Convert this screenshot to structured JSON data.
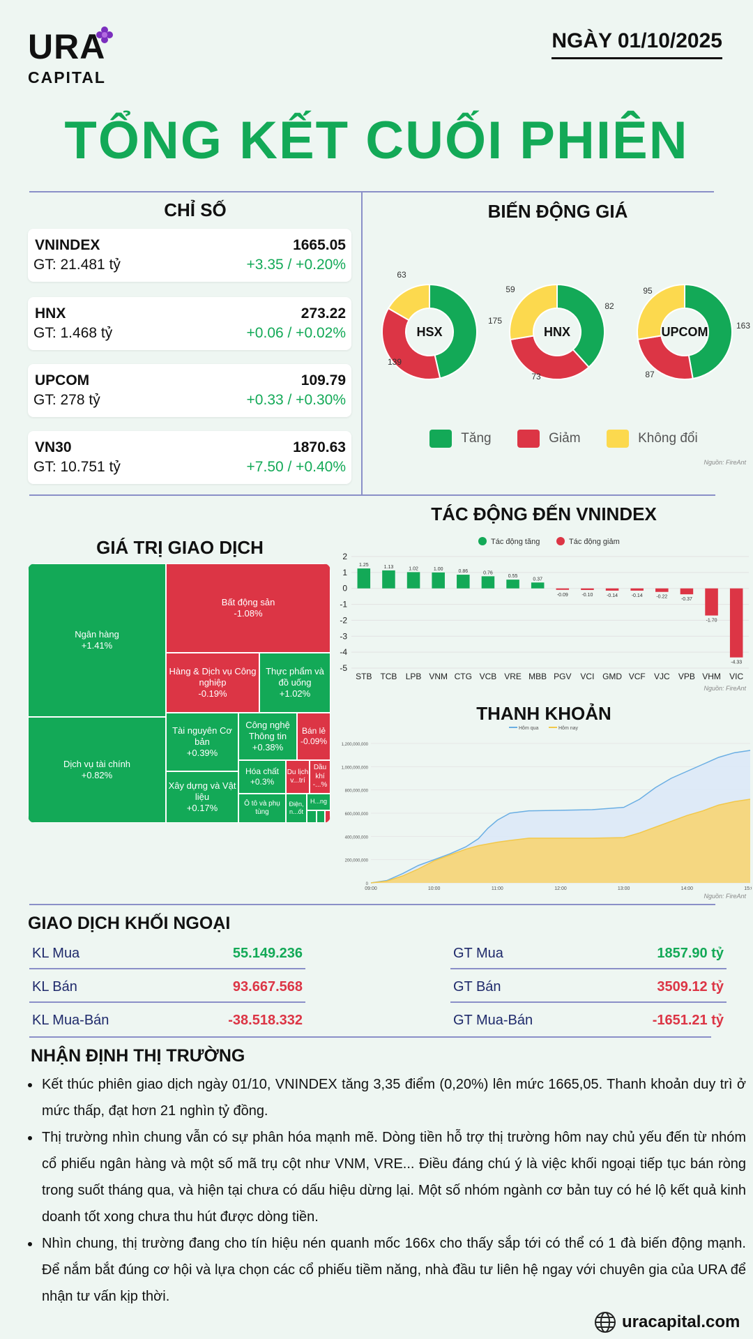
{
  "header": {
    "logo_text": "URA",
    "logo_sub": "CAPITAL",
    "date": "NGÀY 01/10/2025",
    "title": "TỔNG KẾT CUỐI PHIÊN"
  },
  "indices": {
    "heading": "CHỈ SỐ",
    "items": [
      {
        "name": "VNINDEX",
        "gt": "GT: 21.481 tỷ",
        "value": "1665.05",
        "change": "+3.35 / +0.20%"
      },
      {
        "name": "HNX",
        "gt": "GT: 1.468 tỷ",
        "value": "273.22",
        "change": "+0.06 / +0.02%"
      },
      {
        "name": "UPCOM",
        "gt": "GT: 278 tỷ",
        "value": "109.79",
        "change": "+0.33 / +0.30%"
      },
      {
        "name": "VN30",
        "gt": "GT: 10.751 tỷ",
        "value": "1870.63",
        "change": "+7.50 / +0.40%"
      }
    ]
  },
  "price_move": {
    "heading": "BIẾN ĐỘNG GIÁ",
    "donuts": [
      {
        "label": "HSX",
        "up": 175,
        "down": 139,
        "flat": 63
      },
      {
        "label": "HNX",
        "up": 82,
        "down": 73,
        "flat": 59
      },
      {
        "label": "UPCOM",
        "up": 163,
        "down": 87,
        "flat": 95
      }
    ],
    "legend": {
      "up": "Tăng",
      "down": "Giảm",
      "flat": "Không đổi"
    },
    "source": "Nguồn: FireAnt"
  },
  "colors": {
    "up": "#13a957",
    "down": "#dc3545",
    "flat": "#fcd94e",
    "accent": "#13a957",
    "line": "#8a8fc8"
  },
  "trade_value": {
    "heading": "GIÁ TRỊ GIAO DỊCH",
    "tiles": [
      {
        "name": "Ngân hàng",
        "pct": "+1.41%"
      },
      {
        "name": "Dịch vụ tài chính",
        "pct": "+0.82%"
      },
      {
        "name": "Bất động sản",
        "pct": "-1.08%"
      },
      {
        "name": "Hàng & Dịch vụ Công nghiệp",
        "pct": "-0.19%"
      },
      {
        "name": "Thực phẩm và đồ uống",
        "pct": "+1.02%"
      },
      {
        "name": "Tài nguyên Cơ bản",
        "pct": "+0.39%"
      },
      {
        "name": "Công nghệ Thông tin",
        "pct": "+0.38%"
      },
      {
        "name": "Bán lẻ",
        "pct": "-0.09%"
      },
      {
        "name": "Xây dựng và Vật liệu",
        "pct": "+0.17%"
      },
      {
        "name": "Hóa chất",
        "pct": "+0.3%"
      },
      {
        "name": "Du lịch v...trí",
        "pct": ""
      },
      {
        "name": "Dầu khí",
        "pct": "-...%"
      },
      {
        "name": "Ô tô và phụ tùng",
        "pct": ""
      },
      {
        "name": "Điện, n...ốt",
        "pct": ""
      },
      {
        "name": "H...ng",
        "pct": ""
      }
    ]
  },
  "impact": {
    "heading": "TÁC ĐỘNG ĐẾN VNINDEX",
    "source": "Nguồn: FireAnt"
  },
  "chart_data": [
    {
      "type": "bar",
      "title": "TÁC ĐỘNG ĐẾN VNINDEX",
      "legend": [
        "Tác động tăng",
        "Tác động giảm"
      ],
      "categories": [
        "STB",
        "TCB",
        "LPB",
        "VNM",
        "CTG",
        "VCB",
        "VRE",
        "MBB",
        "PGV",
        "VCI",
        "GMD",
        "VCF",
        "VJC",
        "VPB",
        "VHM",
        "VIC"
      ],
      "values": [
        1.25,
        1.13,
        1.02,
        1.0,
        0.86,
        0.76,
        0.55,
        0.37,
        -0.09,
        -0.1,
        -0.14,
        -0.14,
        -0.22,
        -0.37,
        -1.7,
        -4.33
      ],
      "value_labels": [
        "1.25",
        "1.13",
        "1.02",
        "1.00",
        "0.86",
        "0.76",
        "0.55",
        "0.37",
        "-0.09",
        "-0.10",
        "-0.14",
        "-0.14",
        "-0.22",
        "-0.37",
        "-1.70",
        "-4.33"
      ],
      "yticks": [
        "2",
        "1",
        "0",
        "-1",
        "-2",
        "-3",
        "-4",
        "-5"
      ],
      "ylim": [
        -5,
        2
      ]
    },
    {
      "type": "area",
      "title": "THANH KHOẢN",
      "legend": [
        "Hôm qua",
        "Hôm nay"
      ],
      "xticks": [
        "09:00",
        "10:00",
        "11:00",
        "12:00",
        "13:00",
        "14:00",
        "15:00"
      ],
      "yticks": [
        "1,200,000,000",
        "1,000,000,000",
        "800,000,000",
        "600,000,000",
        "400,000,000",
        "200,000,000",
        "0"
      ],
      "ylim": [
        0,
        1200000000
      ],
      "x_hours": [
        9.0,
        9.25,
        9.5,
        9.75,
        10.0,
        10.25,
        10.5,
        10.7,
        10.85,
        11.0,
        11.2,
        11.5,
        12.0,
        12.5,
        13.0,
        13.25,
        13.5,
        13.75,
        14.0,
        14.25,
        14.5,
        14.75,
        15.0
      ],
      "series": [
        {
          "name": "Hôm qua",
          "values": [
            0,
            20000000,
            80000000,
            150000000,
            200000000,
            250000000,
            310000000,
            380000000,
            470000000,
            540000000,
            600000000,
            620000000,
            625000000,
            630000000,
            650000000,
            720000000,
            820000000,
            900000000,
            960000000,
            1020000000,
            1080000000,
            1120000000,
            1140000000
          ]
        },
        {
          "name": "Hôm nay",
          "values": [
            0,
            15000000,
            60000000,
            120000000,
            190000000,
            240000000,
            290000000,
            320000000,
            335000000,
            350000000,
            365000000,
            385000000,
            385000000,
            385000000,
            390000000,
            430000000,
            480000000,
            530000000,
            580000000,
            620000000,
            670000000,
            700000000,
            720000000
          ]
        }
      ]
    }
  ],
  "liquidity": {
    "heading": "THANH KHOẢN",
    "source": "Nguồn: FireAnt"
  },
  "foreign": {
    "heading": "GIAO DỊCH KHỐI NGOẠI",
    "left": [
      {
        "label": "KL Mua",
        "value": "55.149.236"
      },
      {
        "label": "KL Bán",
        "value": "93.667.568"
      },
      {
        "label": "KL Mua-Bán",
        "value": "-38.518.332"
      }
    ],
    "right": [
      {
        "label": "GT Mua",
        "value": "1857.90 tỷ"
      },
      {
        "label": "GT Bán",
        "value": "3509.12 tỷ"
      },
      {
        "label": "GT Mua-Bán",
        "value": "-1651.21 tỷ"
      }
    ]
  },
  "outlook": {
    "heading": "NHẬN ĐỊNH THỊ TRƯỜNG",
    "bullets": [
      "Kết thúc phiên giao dịch ngày 01/10, VNINDEX tăng 3,35 điểm (0,20%) lên mức 1665,05. Thanh khoản duy trì ở mức thấp, đạt hơn 21 nghìn tỷ đồng.",
      "Thị trường nhìn chung vẫn có sự phân hóa mạnh mẽ. Dòng tiền hỗ trợ thị trường hôm nay chủ yếu đến từ nhóm cổ phiếu ngân hàng và một số mã trụ cột như VNM, VRE... Điều đáng chú ý là việc khối ngoại tiếp tục bán ròng trong suốt tháng qua, và hiện tại chưa có dấu hiệu dừng lại. Một số nhóm ngành cơ bản tuy có hé lộ kết quả kinh doanh tốt xong chưa thu hút được dòng tiền.",
      "Nhìn chung, thị trường đang cho tín hiệu nén quanh mốc 166x cho thấy sắp tới có thể có 1 đà biến động mạnh. Để nắm bắt đúng cơ hội và lựa chọn các cổ phiếu tiềm năng, nhà đầu tư liên hệ ngay với chuyên gia của URA để nhận tư vấn kịp thời."
    ]
  },
  "footer": {
    "website": "uracapital.com",
    "globe_icon": "globe-icon"
  }
}
